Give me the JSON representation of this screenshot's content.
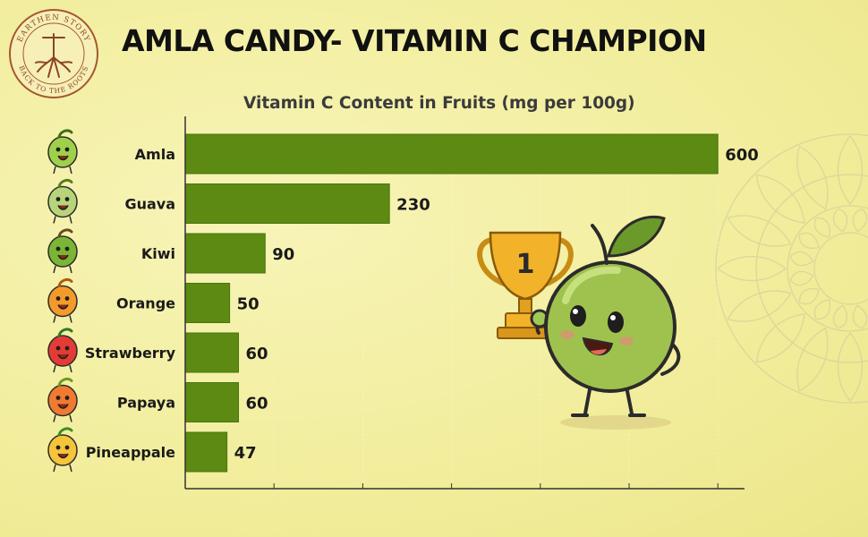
{
  "header": {
    "title": "AMLA CANDY- VITAMIN C CHAMPION",
    "logo_top": "EARTHEN STORY",
    "logo_bottom": "BACK TO THE ROOTS"
  },
  "trophy_rank": "1",
  "colors": {
    "bar": "#5c8a12",
    "bar_edge": "#4a7410",
    "background": "#f2ee9e",
    "title": "#111111",
    "gridline": "#ffffff"
  },
  "chart_data": {
    "type": "bar",
    "orientation": "horizontal",
    "title": "Vitamin C Content in Fruits (mg per 100g)",
    "xlabel": "",
    "ylabel": "",
    "xlim": [
      0,
      630
    ],
    "grid": true,
    "categories": [
      "Amla",
      "Guava",
      "Kiwi",
      "Orange",
      "Strawberry",
      "Papaya",
      "Pineappale"
    ],
    "values": [
      600,
      230,
      90,
      50,
      60,
      60,
      47
    ],
    "value_labels": [
      "600",
      "230",
      "90",
      "50",
      "60",
      "60",
      "47"
    ],
    "icons": [
      "amla-icon",
      "guava-icon",
      "kiwi-icon",
      "orange-icon",
      "strawberry-icon",
      "papaya-icon",
      "pineapple-icon"
    ]
  }
}
